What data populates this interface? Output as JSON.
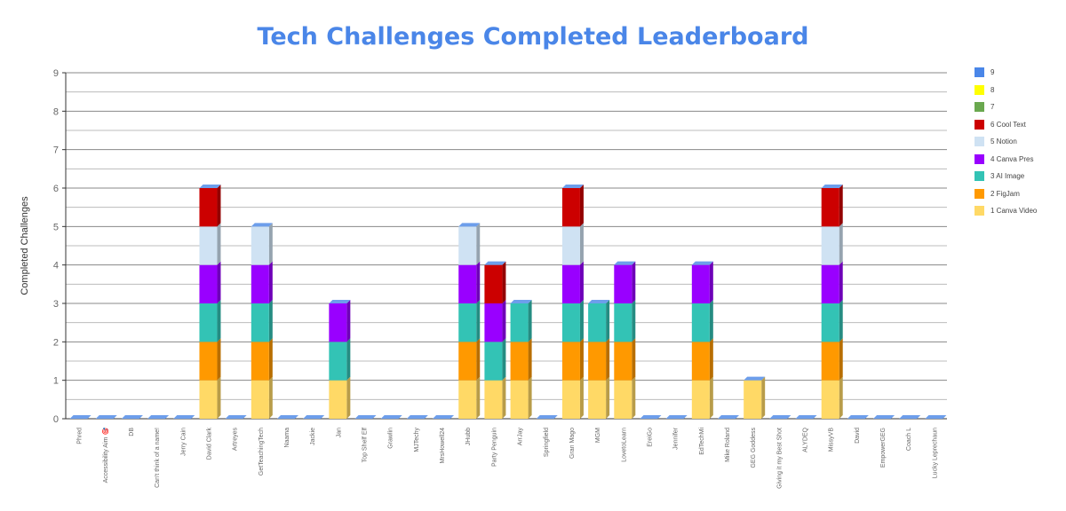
{
  "chart_data": {
    "type": "bar",
    "stacked": true,
    "title": "Tech Challenges Completed Leaderboard",
    "xlabel": "",
    "ylabel": "Completed Challenges",
    "ylim": [
      0,
      9
    ],
    "yticks": [
      0,
      1,
      2,
      3,
      4,
      5,
      6,
      7,
      8,
      9
    ],
    "grid": true,
    "legend_position": "right",
    "categories": [
      "Phred",
      "Accessibility Aim 🎯",
      "DB",
      "Can't think of a name!",
      "Jerry Cain",
      "David Clark",
      "Artreyes",
      "GetTeachingTech",
      "Naama",
      "Jackie",
      "Jan",
      "Top Shelf Elf",
      "Grawlin",
      "MJTechy",
      "MrsHowell24",
      "JHubb",
      "Party Penguin",
      "ArrJay",
      "Springfield",
      "Gran Mago",
      "MGM",
      "LovetoLearn",
      "EreiGo",
      "Jennifer",
      "EdTechMi",
      "Mike Roland",
      "GEG Goddess",
      "Giving it my Best Shot",
      "ALYDEQ",
      "MissyVB",
      "David",
      "EmpowerGEG",
      "Coach L",
      "Lucky Leprechaun"
    ],
    "series": [
      {
        "name": "1 Canva Video",
        "color": "#ffd966",
        "values": [
          0,
          0,
          0,
          0,
          0,
          1,
          0,
          1,
          0,
          0,
          1,
          0,
          0,
          0,
          0,
          1,
          1,
          1,
          0,
          1,
          1,
          1,
          0,
          0,
          1,
          0,
          1,
          0,
          0,
          1,
          0,
          0,
          0,
          0
        ]
      },
      {
        "name": "2 FigJam",
        "color": "#ff9900",
        "values": [
          0,
          0,
          0,
          0,
          0,
          1,
          0,
          1,
          0,
          0,
          0,
          0,
          0,
          0,
          0,
          1,
          0,
          1,
          0,
          1,
          1,
          1,
          0,
          0,
          1,
          0,
          0,
          0,
          0,
          1,
          0,
          0,
          0,
          0
        ]
      },
      {
        "name": "3 AI Image",
        "color": "#33c3b5",
        "values": [
          0,
          0,
          0,
          0,
          0,
          1,
          0,
          1,
          0,
          0,
          1,
          0,
          0,
          0,
          0,
          1,
          1,
          1,
          0,
          1,
          1,
          1,
          0,
          0,
          1,
          0,
          0,
          0,
          0,
          1,
          0,
          0,
          0,
          0
        ]
      },
      {
        "name": "4 Canva Pres",
        "color": "#9900ff",
        "values": [
          0,
          0,
          0,
          0,
          0,
          1,
          0,
          1,
          0,
          0,
          1,
          0,
          0,
          0,
          0,
          1,
          1,
          0,
          0,
          1,
          0,
          1,
          0,
          0,
          1,
          0,
          0,
          0,
          0,
          1,
          0,
          0,
          0,
          0
        ]
      },
      {
        "name": "5 Notion",
        "color": "#cfe2f3",
        "values": [
          0,
          0,
          0,
          0,
          0,
          1,
          0,
          1,
          0,
          0,
          0,
          0,
          0,
          0,
          0,
          1,
          0,
          0,
          0,
          1,
          0,
          0,
          0,
          0,
          0,
          0,
          0,
          0,
          0,
          1,
          0,
          0,
          0,
          0
        ]
      },
      {
        "name": "6 Cool Text",
        "color": "#cc0000",
        "values": [
          0,
          0,
          0,
          0,
          0,
          1,
          0,
          0,
          0,
          0,
          0,
          0,
          0,
          0,
          0,
          0,
          1,
          0,
          0,
          1,
          0,
          0,
          0,
          0,
          0,
          0,
          0,
          0,
          0,
          1,
          0,
          0,
          0,
          0
        ]
      },
      {
        "name": "7",
        "color": "#6aa84f",
        "values": [
          0,
          0,
          0,
          0,
          0,
          0,
          0,
          0,
          0,
          0,
          0,
          0,
          0,
          0,
          0,
          0,
          0,
          0,
          0,
          0,
          0,
          0,
          0,
          0,
          0,
          0,
          0,
          0,
          0,
          0,
          0,
          0,
          0,
          0
        ]
      },
      {
        "name": "8",
        "color": "#ffff00",
        "values": [
          0,
          0,
          0,
          0,
          0,
          0,
          0,
          0,
          0,
          0,
          0,
          0,
          0,
          0,
          0,
          0,
          0,
          0,
          0,
          0,
          0,
          0,
          0,
          0,
          0,
          0,
          0,
          0,
          0,
          0,
          0,
          0,
          0,
          0
        ]
      },
      {
        "name": "9",
        "color": "#4a86e8",
        "values": [
          0,
          0,
          0,
          0,
          0,
          0,
          0,
          0,
          0,
          0,
          0,
          0,
          0,
          0,
          0,
          0,
          0,
          0,
          0,
          0,
          0,
          0,
          0,
          0,
          0,
          0,
          0,
          0,
          0,
          0,
          0,
          0,
          0,
          0
        ]
      }
    ],
    "top_cap_color": "#6d9eeb"
  }
}
